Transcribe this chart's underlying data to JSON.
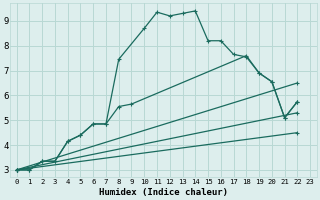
{
  "xlabel": "Humidex (Indice chaleur)",
  "xlim": [
    -0.5,
    23.5
  ],
  "ylim": [
    2.7,
    9.7
  ],
  "bg_color": "#ddeeed",
  "grid_color": "#b8d8d4",
  "line_color": "#1a6b5e",
  "series": [
    {
      "x": [
        0,
        1,
        2,
        3,
        4,
        5,
        6,
        7,
        8,
        10,
        11,
        12,
        13,
        14,
        15,
        16,
        17,
        18,
        19,
        20,
        21,
        22
      ],
      "y": [
        3,
        3,
        3.35,
        3.35,
        4.15,
        4.4,
        4.85,
        4.85,
        7.45,
        8.7,
        9.35,
        9.2,
        9.3,
        9.4,
        8.2,
        8.2,
        7.65,
        7.55,
        6.9,
        6.55,
        5.1,
        5.75
      ]
    },
    {
      "x": [
        0,
        1,
        2,
        3,
        4,
        5,
        6,
        7,
        8,
        9,
        18,
        19,
        20,
        21,
        22
      ],
      "y": [
        3,
        3,
        3.35,
        3.35,
        4.15,
        4.4,
        4.85,
        4.85,
        5.55,
        5.65,
        7.6,
        6.9,
        6.55,
        5.1,
        5.75
      ]
    },
    {
      "x": [
        0,
        22
      ],
      "y": [
        3,
        6.5
      ]
    },
    {
      "x": [
        0,
        22
      ],
      "y": [
        3,
        5.3
      ]
    },
    {
      "x": [
        0,
        22
      ],
      "y": [
        3,
        4.5
      ]
    }
  ],
  "xticks": [
    0,
    1,
    2,
    3,
    4,
    5,
    6,
    7,
    8,
    9,
    10,
    11,
    12,
    13,
    14,
    15,
    16,
    17,
    18,
    19,
    20,
    21,
    22,
    23
  ],
  "yticks": [
    3,
    4,
    5,
    6,
    7,
    8,
    9
  ],
  "xtick_labels": [
    "0",
    "1",
    "2",
    "3",
    "4",
    "5",
    "6",
    "7",
    "8",
    "9",
    "10",
    "11",
    "12",
    "13",
    "14",
    "15",
    "16",
    "17",
    "18",
    "19",
    "20",
    "21",
    "22",
    "23"
  ],
  "ytick_labels": [
    "3",
    "4",
    "5",
    "6",
    "7",
    "8",
    "9"
  ]
}
